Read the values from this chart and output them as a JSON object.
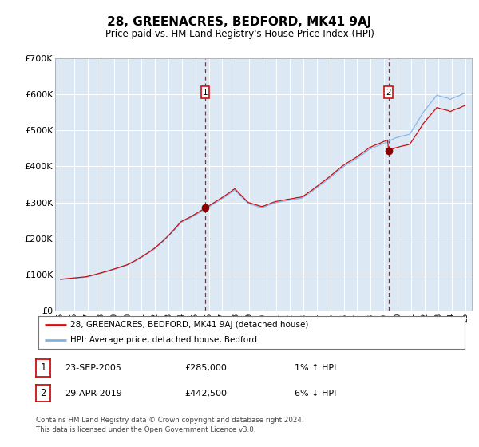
{
  "title": "28, GREENACRES, BEDFORD, MK41 9AJ",
  "subtitle": "Price paid vs. HM Land Registry's House Price Index (HPI)",
  "plot_bg_color": "#dde8f5",
  "legend_line1": "28, GREENACRES, BEDFORD, MK41 9AJ (detached house)",
  "legend_line2": "HPI: Average price, detached house, Bedford",
  "transaction1_date": "23-SEP-2005",
  "transaction1_price": "£285,000",
  "transaction1_hpi": "1% ↑ HPI",
  "transaction2_date": "29-APR-2019",
  "transaction2_price": "£442,500",
  "transaction2_hpi": "6% ↓ HPI",
  "footer": "Contains HM Land Registry data © Crown copyright and database right 2024.\nThis data is licensed under the Open Government Licence v3.0.",
  "ylim": [
    0,
    700000
  ],
  "yticks": [
    0,
    100000,
    200000,
    300000,
    400000,
    500000,
    600000,
    700000
  ],
  "ytick_labels": [
    "£0",
    "£100K",
    "£200K",
    "£300K",
    "£400K",
    "£500K",
    "£600K",
    "£700K"
  ],
  "hpi_color": "#7fb3e8",
  "price_color": "#cc1111",
  "marker1_x": 2005.73,
  "marker1_y": 285000,
  "marker2_x": 2019.33,
  "marker2_y": 442500,
  "vline1_x": 2005.73,
  "vline2_x": 2019.33,
  "xmin": 1995,
  "xmax": 2025
}
